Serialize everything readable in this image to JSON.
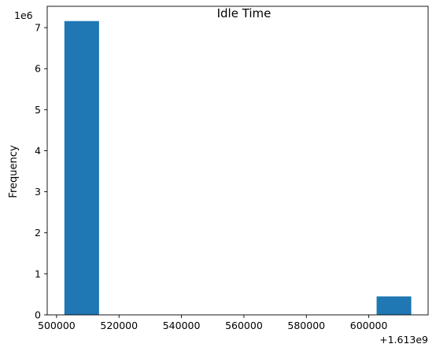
{
  "chart_data": {
    "type": "bar",
    "title": "Idle Time",
    "xlabel": "",
    "ylabel": "Frequency",
    "y_scale_label": "1e6",
    "x_offset_label": "+1.613e9",
    "bins": [
      {
        "x0": 502500,
        "x1": 513600,
        "count": 7160000
      },
      {
        "x0": 602500,
        "x1": 613600,
        "count": 450000
      }
    ],
    "xlim": [
      497000,
      619000
    ],
    "ylim": [
      0,
      7520000
    ],
    "x_ticks": [
      {
        "value": 500000,
        "label": "500000"
      },
      {
        "value": 520000,
        "label": "520000"
      },
      {
        "value": 540000,
        "label": "540000"
      },
      {
        "value": 560000,
        "label": "560000"
      },
      {
        "value": 580000,
        "label": "580000"
      },
      {
        "value": 600000,
        "label": "600000"
      }
    ],
    "y_ticks": [
      {
        "value": 0,
        "label": "0"
      },
      {
        "value": 1000000,
        "label": "1"
      },
      {
        "value": 2000000,
        "label": "2"
      },
      {
        "value": 3000000,
        "label": "3"
      },
      {
        "value": 4000000,
        "label": "4"
      },
      {
        "value": 5000000,
        "label": "5"
      },
      {
        "value": 6000000,
        "label": "6"
      },
      {
        "value": 7000000,
        "label": "7"
      }
    ],
    "bar_color": "#1f77b4",
    "grid": false
  }
}
